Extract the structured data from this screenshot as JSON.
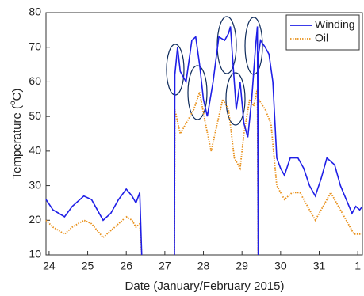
{
  "chart_data": {
    "type": "line",
    "x_label": "Date (January/February 2015)",
    "y_label": [
      "Temperature (",
      "o",
      "C)"
    ],
    "xlim": [
      23.92,
      32.12
    ],
    "xticks": [
      24,
      25,
      26,
      27,
      28,
      29,
      30,
      31,
      {
        "value": 32,
        "label": "1"
      }
    ],
    "ylim": [
      10,
      80
    ],
    "yticks": [
      10,
      20,
      30,
      40,
      50,
      60,
      70,
      80
    ],
    "legend": "upper right",
    "series": [
      {
        "name": "Winding",
        "color": "#1f1fe6",
        "line_style": "solid",
        "x": [
          23.92,
          24.1,
          24.25,
          24.4,
          24.6,
          24.9,
          25.1,
          25.25,
          25.4,
          25.6,
          25.8,
          26.0,
          26.15,
          26.25,
          26.35,
          26.4,
          26.8,
          27.25,
          27.26,
          27.33,
          27.4,
          27.55,
          27.7,
          27.8,
          27.9,
          28.0,
          28.1,
          28.25,
          28.4,
          28.55,
          28.65,
          28.7,
          28.75,
          28.85,
          28.95,
          29.05,
          29.15,
          29.25,
          29.35,
          29.4,
          29.42,
          29.43,
          29.48,
          29.6,
          29.7,
          29.8,
          29.9,
          30.0,
          30.1,
          30.25,
          30.45,
          30.6,
          30.75,
          30.9,
          31.05,
          31.2,
          31.4,
          31.55,
          31.7,
          31.85,
          31.95,
          32.05,
          32.12
        ],
        "values": [
          26,
          23,
          22,
          21,
          24,
          27,
          26,
          23,
          20,
          22,
          26,
          29,
          27,
          25,
          28,
          10,
          null,
          10,
          62,
          70,
          63,
          60,
          72,
          73,
          65,
          55,
          50,
          60,
          73,
          72,
          74,
          76,
          68,
          52,
          60,
          48,
          44,
          55,
          70,
          76,
          10,
          68,
          72,
          70,
          68,
          60,
          38,
          35,
          33,
          38,
          38,
          35,
          30,
          27,
          32,
          38,
          36,
          30,
          26,
          22,
          24,
          23,
          24
        ]
      },
      {
        "name": "Oil",
        "color": "#e8901a",
        "line_style": "dotted",
        "x": [
          23.92,
          24.1,
          24.25,
          24.4,
          24.6,
          24.9,
          25.1,
          25.25,
          25.4,
          25.6,
          25.8,
          26.0,
          26.15,
          26.25,
          26.35,
          26.4,
          26.8,
          27.25,
          27.26,
          27.4,
          27.55,
          27.75,
          27.9,
          28.05,
          28.2,
          28.3,
          28.5,
          28.65,
          28.8,
          28.95,
          29.05,
          29.2,
          29.3,
          29.4,
          29.42,
          29.43,
          29.6,
          29.75,
          29.9,
          30.1,
          30.3,
          30.5,
          30.7,
          30.9,
          31.1,
          31.3,
          31.5,
          31.7,
          31.9,
          32.12
        ],
        "values": [
          20,
          18,
          17,
          16,
          18,
          20,
          19,
          17,
          15,
          17,
          19,
          21,
          20,
          18,
          19,
          10,
          null,
          10,
          52,
          45,
          48,
          52,
          57,
          48,
          40,
          45,
          55,
          52,
          38,
          35,
          45,
          55,
          53,
          58,
          10,
          55,
          52,
          48,
          30,
          26,
          28,
          28,
          24,
          20,
          24,
          28,
          24,
          20,
          16,
          16
        ]
      }
    ]
  }
}
